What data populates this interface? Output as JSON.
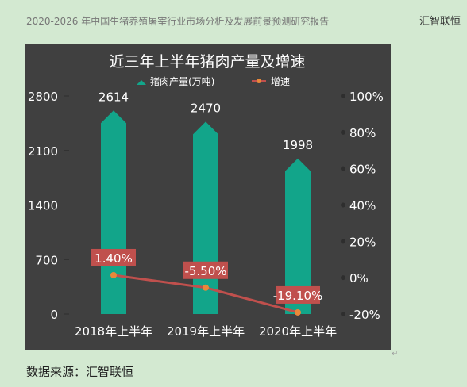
{
  "header": {
    "title": "2020-2026 年中国生猪养殖屠宰行业市场分析及发展前景预测研究报告",
    "brand": "汇智联恒"
  },
  "caption": "数据来源：汇智联恒",
  "colors": {
    "bar": "#12a58a",
    "line": "#c0504d",
    "marker": "#e8883a",
    "panel": "#404040"
  },
  "chart_data": {
    "type": "bar",
    "title": "近三年上半年猪肉产量及增速",
    "categories": [
      "2018年上半年",
      "2019年上半年",
      "2020年上半年"
    ],
    "series": [
      {
        "name": "猪肉产量(万吨)",
        "type": "bar",
        "axis": "left",
        "values": [
          2614,
          2470,
          1998
        ],
        "labels": [
          "2614",
          "2470",
          "1998"
        ]
      },
      {
        "name": "增速",
        "type": "line",
        "axis": "right",
        "values": [
          1.4,
          -5.5,
          -19.1
        ],
        "labels": [
          "1.40%",
          "-5.50%",
          "-19.10%"
        ]
      }
    ],
    "y_left": {
      "min": 0,
      "max": 2800,
      "ticks": [
        0,
        700,
        1400,
        2100,
        2800
      ],
      "tick_labels": [
        "0",
        "700",
        "1400",
        "2100",
        "2800"
      ]
    },
    "y_right": {
      "min": -20,
      "max": 100,
      "ticks": [
        -20,
        0,
        20,
        40,
        60,
        80,
        100
      ],
      "tick_labels": [
        "-20%",
        "0%",
        "20%",
        "40%",
        "60%",
        "80%",
        "100%"
      ]
    },
    "legend_position": "top",
    "grid": false
  }
}
